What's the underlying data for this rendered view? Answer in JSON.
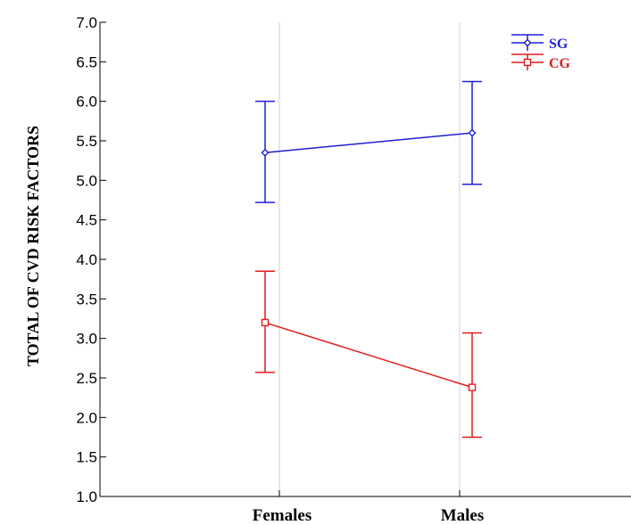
{
  "chart_data": {
    "type": "line",
    "title": "",
    "xlabel": "",
    "ylabel": "TOTAL OF CVD RISK FACTORS",
    "categories": [
      "Females",
      "Males"
    ],
    "ylim": [
      1.0,
      7.0
    ],
    "yticks": [
      "1.0",
      "1.5",
      "2.0",
      "2.5",
      "3.0",
      "3.5",
      "4.0",
      "4.5",
      "5.0",
      "5.5",
      "6.0",
      "6.5",
      "7.0"
    ],
    "grid": "vertical",
    "legend_position": "top-right",
    "series": [
      {
        "name": "SG",
        "color": "#1f1fd6",
        "marker": "diamond",
        "values": [
          5.35,
          5.6
        ],
        "lower": [
          4.72,
          4.95
        ],
        "upper": [
          6.0,
          6.25
        ]
      },
      {
        "name": "CG",
        "color": "#e01b1b",
        "marker": "square",
        "values": [
          3.2,
          2.38
        ],
        "lower": [
          2.57,
          1.75
        ],
        "upper": [
          3.85,
          3.07
        ]
      }
    ]
  }
}
